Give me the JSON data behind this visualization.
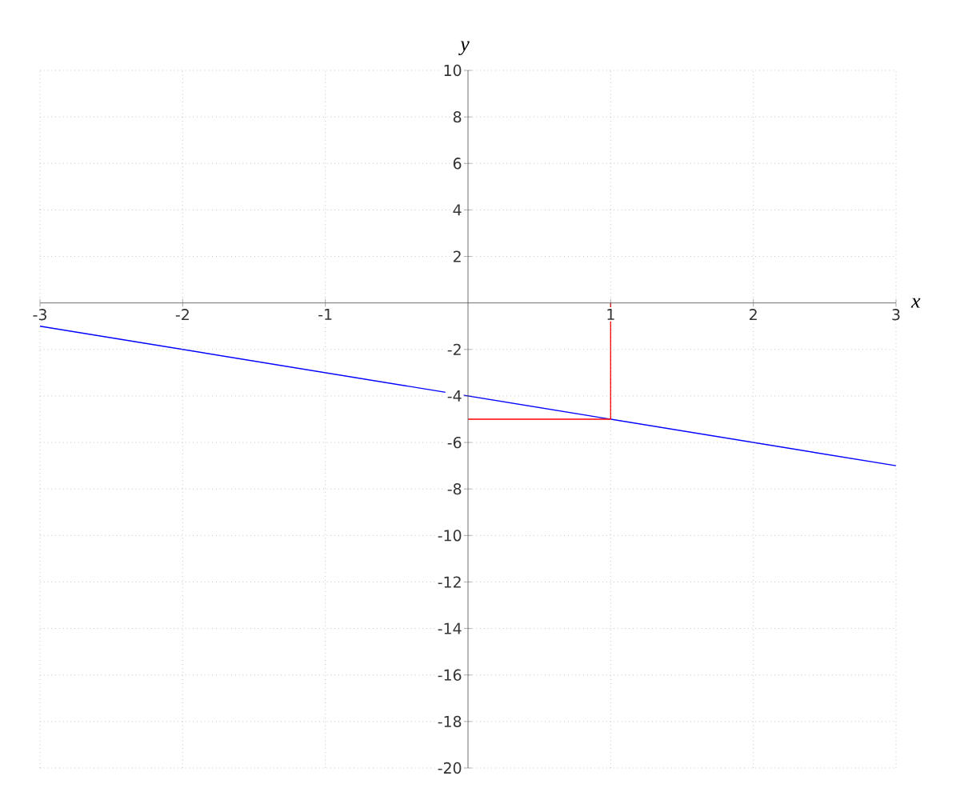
{
  "chart_data": {
    "type": "line",
    "xlabel": "x",
    "ylabel": "y",
    "xlim": [
      -3,
      3
    ],
    "ylim": [
      -20,
      10
    ],
    "xticks": [
      -3,
      -2,
      -1,
      1,
      2,
      3
    ],
    "yticks": [
      -20,
      -18,
      -16,
      -14,
      -12,
      -10,
      -8,
      -6,
      -4,
      -2,
      2,
      4,
      6,
      8,
      10
    ],
    "grid": true,
    "series": [
      {
        "color": "#0000ff",
        "x": [
          -3,
          3
        ],
        "values": [
          -1,
          -7
        ]
      },
      {
        "color": "#ff0000",
        "x": [
          1,
          1
        ],
        "values": [
          0,
          -5
        ]
      },
      {
        "color": "#ff0000",
        "x": [
          0,
          1
        ],
        "values": [
          -5,
          -5
        ]
      }
    ]
  }
}
